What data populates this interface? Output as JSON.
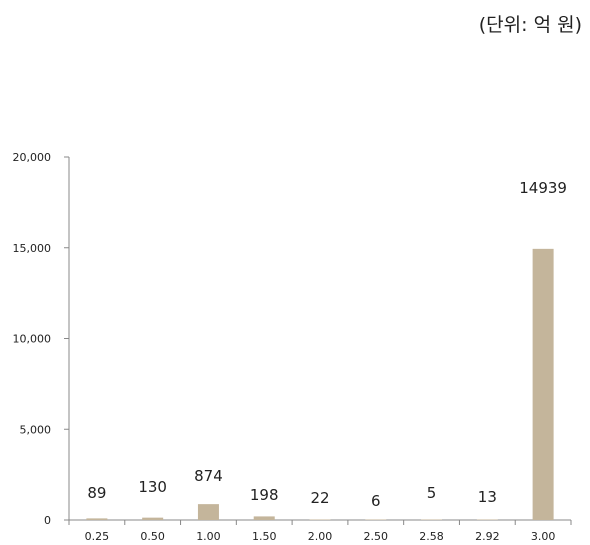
{
  "unit_note": "(단위: 억 원)",
  "chart_data": {
    "type": "bar",
    "categories": [
      "0.25",
      "0.50",
      "1.00",
      "1.50",
      "2.00",
      "2.50",
      "2.58",
      "2.92",
      "3.00"
    ],
    "values": [
      89,
      130,
      874,
      198,
      22,
      6,
      5,
      13,
      14939
    ],
    "data_labels": [
      "89",
      "130",
      "874",
      "198",
      "22",
      "6",
      "5",
      "13",
      "14939"
    ],
    "yticks": [
      "0",
      "5,000",
      "10,000",
      "15,000",
      "20,000"
    ],
    "ylim": [
      0,
      20000
    ],
    "bar_color": "#c4b59b",
    "grid": false,
    "legend": "none"
  }
}
